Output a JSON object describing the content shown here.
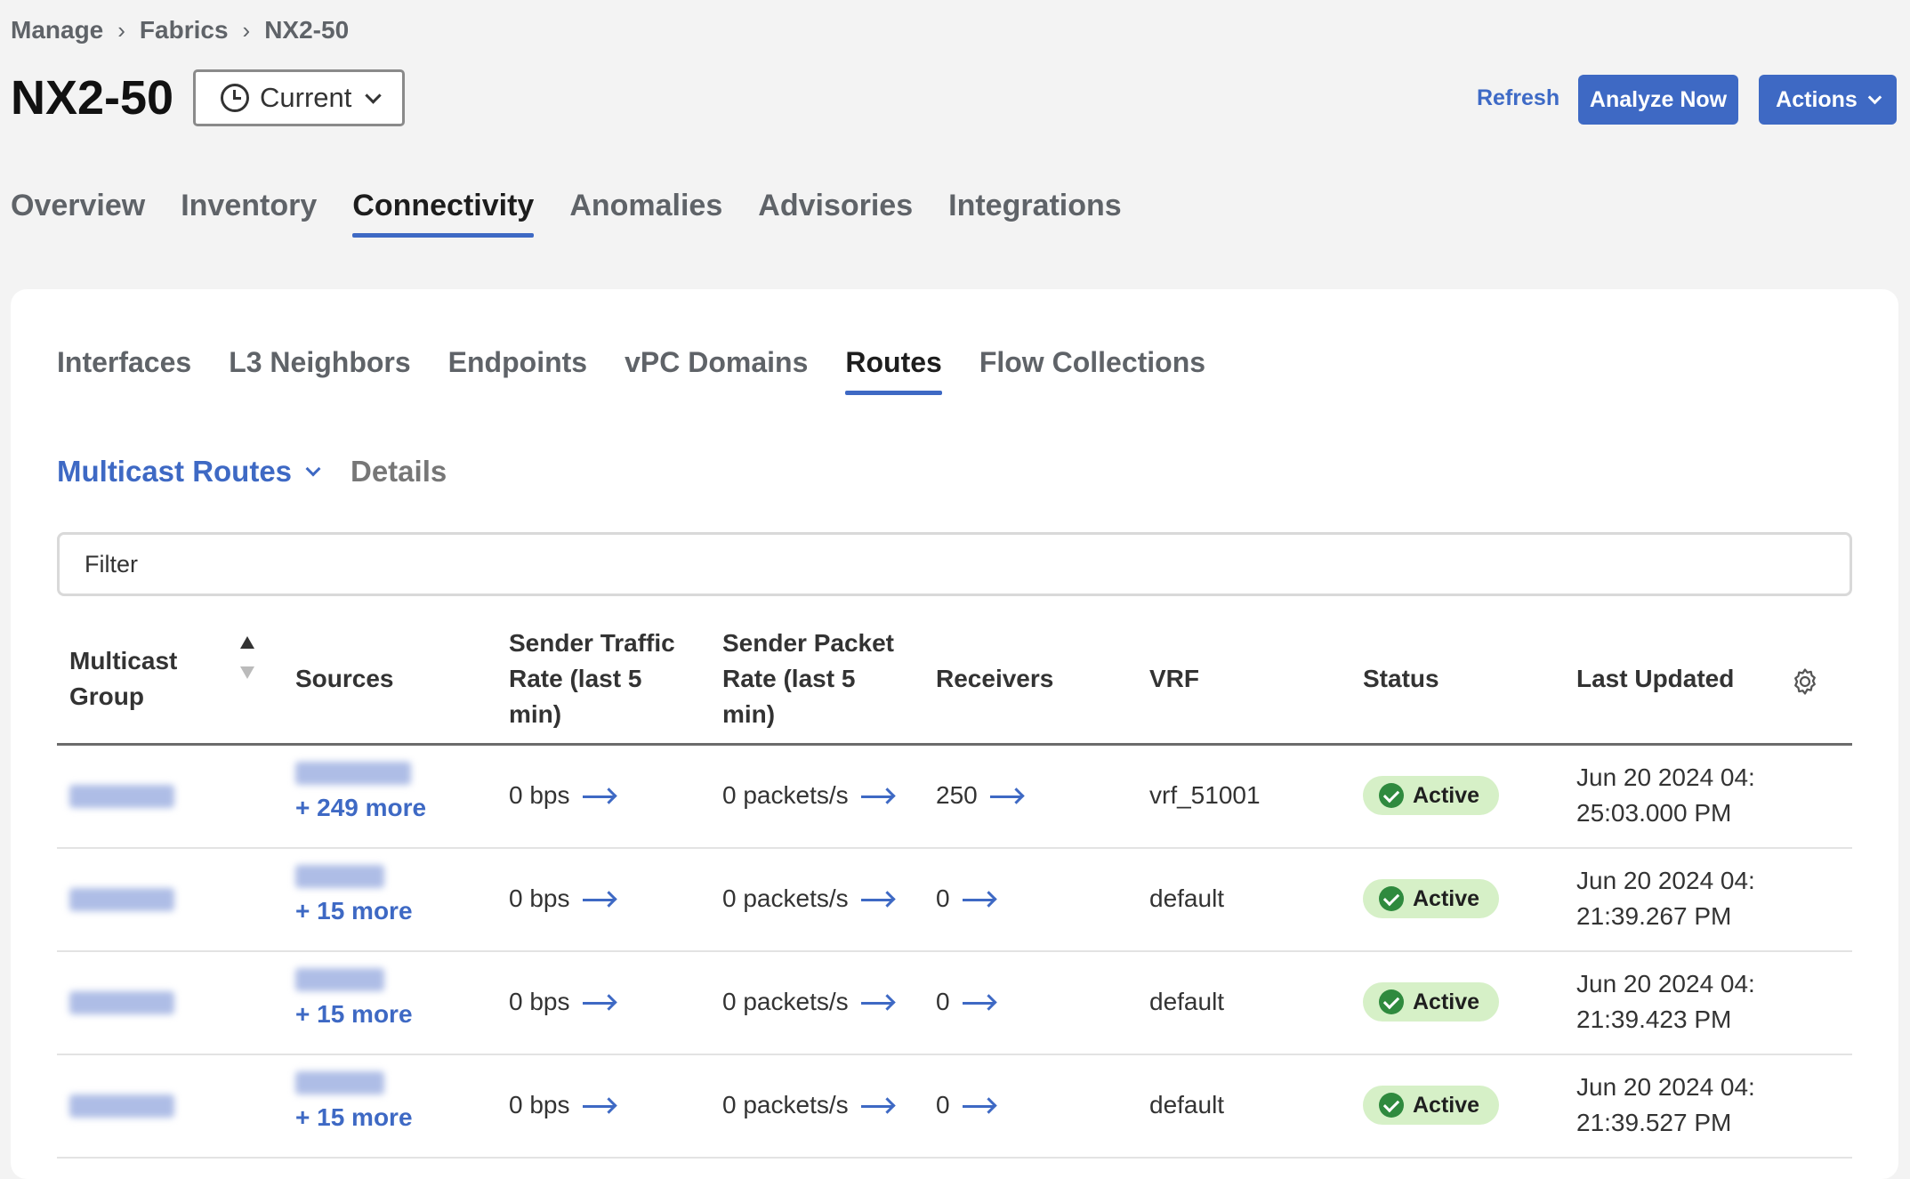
{
  "breadcrumb": [
    "Manage",
    "Fabrics",
    "NX2-50"
  ],
  "title": "NX2-50",
  "time_select": {
    "value": "Current",
    "icon": "clock-icon"
  },
  "header_actions": {
    "refresh": "Refresh",
    "analyze": "Analyze Now",
    "actions": "Actions"
  },
  "main_tabs": [
    "Overview",
    "Inventory",
    "Connectivity",
    "Anomalies",
    "Advisories",
    "Integrations"
  ],
  "main_tab_active": "Connectivity",
  "sub_tabs": [
    "Interfaces",
    "L3 Neighbors",
    "Endpoints",
    "vPC Domains",
    "Routes",
    "Flow Collections"
  ],
  "sub_tab_active": "Routes",
  "view_select": "Multicast Routes",
  "details_link": "Details",
  "filter": {
    "placeholder": "Filter"
  },
  "columns": {
    "group_1": "Multicast",
    "group_2": "Group",
    "sources": "Sources",
    "sender_traffic_1": "Sender Traffic",
    "sender_traffic_2": "Rate (last 5",
    "sender_traffic_3": "min)",
    "sender_packet_1": "Sender Packet",
    "sender_packet_2": "Rate (last 5",
    "sender_packet_3": "min)",
    "receivers": "Receivers",
    "vrf": "VRF",
    "status": "Status",
    "last_updated": "Last Updated"
  },
  "rows": [
    {
      "sources_more": "+ 249 more",
      "traffic": "0 bps",
      "packets": "0 packets/s",
      "receivers": "250",
      "vrf": "vrf_51001",
      "status": "Active",
      "updated_1": "Jun 20 2024 04:",
      "updated_2": "25:03.000 PM"
    },
    {
      "sources_more": "+ 15 more",
      "traffic": "0 bps",
      "packets": "0 packets/s",
      "receivers": "0",
      "vrf": "default",
      "status": "Active",
      "updated_1": "Jun 20 2024 04:",
      "updated_2": "21:39.267 PM"
    },
    {
      "sources_more": "+ 15 more",
      "traffic": "0 bps",
      "packets": "0 packets/s",
      "receivers": "0",
      "vrf": "default",
      "status": "Active",
      "updated_1": "Jun 20 2024 04:",
      "updated_2": "21:39.423 PM"
    },
    {
      "sources_more": "+ 15 more",
      "traffic": "0 bps",
      "packets": "0 packets/s",
      "receivers": "0",
      "vrf": "default",
      "status": "Active",
      "updated_1": "Jun 20 2024 04:",
      "updated_2": "21:39.527 PM"
    }
  ],
  "colors": {
    "accent": "#3e69c4",
    "status_active_bg": "#d6f0c7",
    "status_active_icon": "#2f8a3e"
  }
}
